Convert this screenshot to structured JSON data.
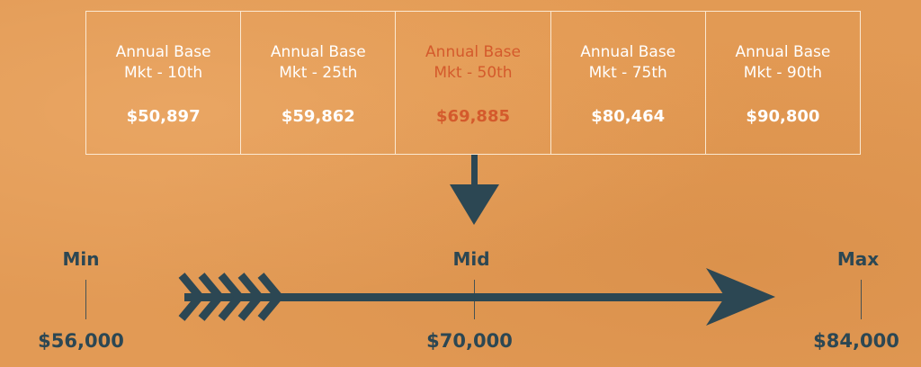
{
  "market_cells": [
    {
      "label": "Annual Base\nMkt - 10th",
      "value": "$50,897",
      "highlight": false
    },
    {
      "label": "Annual Base\nMkt - 25th",
      "value": "$59,862",
      "highlight": false
    },
    {
      "label": "Annual Base\nMkt - 50th",
      "value": "$69,885",
      "highlight": true
    },
    {
      "label": "Annual Base\nMkt - 75th",
      "value": "$80,464",
      "highlight": false
    },
    {
      "label": "Annual Base\nMkt - 90th",
      "value": "$90,800",
      "highlight": false
    }
  ],
  "range": {
    "min": {
      "label": "Min",
      "value": "$56,000"
    },
    "mid": {
      "label": "Mid",
      "value": "$70,000"
    },
    "max": {
      "label": "Max",
      "value": "$84,000"
    }
  },
  "colors": {
    "background": "#e29a55",
    "arrow": "#2c4753",
    "highlight": "#d45a2c",
    "text": "#ffffff"
  }
}
